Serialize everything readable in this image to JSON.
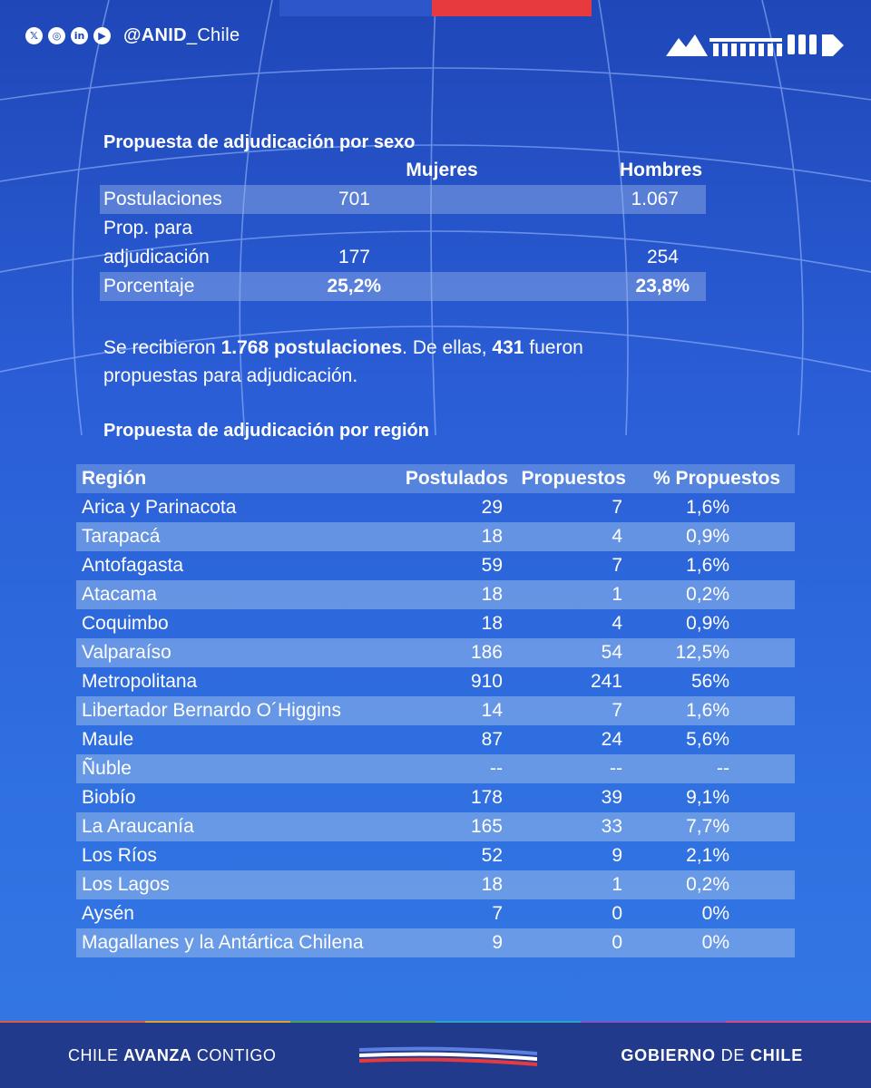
{
  "header": {
    "social_icons": [
      "x-icon",
      "instagram-icon",
      "linkedin-icon",
      "youtube-icon"
    ],
    "handle_bold": "@ANID",
    "handle_rest": "_Chile"
  },
  "sex_section": {
    "title": "Propuesta de adjudicación por sexo",
    "col_women": "Mujeres",
    "col_men": "Hombres",
    "rows": [
      {
        "label": "Postulaciones",
        "women": "701",
        "men": "1.067"
      },
      {
        "label_line1": "Prop. para",
        "label_line2": "adjudicación",
        "women": "177",
        "men": "254"
      },
      {
        "label": "Porcentaje",
        "women": "25,2%",
        "men": "23,8%"
      }
    ]
  },
  "summary": {
    "p1": "Se recibieron ",
    "b1": "1.768 postulaciones",
    "p2": ". De ellas, ",
    "b2": "431",
    "p3": " fueron",
    "line2": "propuestas para adjudicación."
  },
  "region_section": {
    "title": "Propuesta de adjudicación por región",
    "headers": [
      "Región",
      "Postulados",
      "Propuestos",
      "% Propuestos"
    ],
    "rows": [
      [
        "Arica y Parinacota",
        "29",
        "7",
        "1,6%"
      ],
      [
        "Tarapacá",
        "18",
        "4",
        "0,9%"
      ],
      [
        "Antofagasta",
        "59",
        "7",
        "1,6%"
      ],
      [
        "Atacama",
        "18",
        "1",
        "0,2%"
      ],
      [
        "Coquimbo",
        "18",
        "4",
        "0,9%"
      ],
      [
        "Valparaíso",
        "186",
        "54",
        "12,5%"
      ],
      [
        "Metropolitana",
        "910",
        "241",
        "56%"
      ],
      [
        "Libertador Bernardo O´Higgins",
        "14",
        "7",
        "1,6%"
      ],
      [
        "Maule",
        "87",
        "24",
        "5,6%"
      ],
      [
        "Ñuble",
        "--",
        "--",
        "--"
      ],
      [
        "Biobío",
        "178",
        "39",
        "9,1%"
      ],
      [
        "La Araucanía",
        "165",
        "33",
        "7,7%"
      ],
      [
        "Los Ríos",
        "52",
        "9",
        "2,1%"
      ],
      [
        "Los Lagos",
        "18",
        "1",
        "0,2%"
      ],
      [
        "Aysén",
        "7",
        "0",
        "0%"
      ],
      [
        "Magallanes y la Antártica Chilena",
        "9",
        "0",
        "0%"
      ]
    ]
  },
  "footer": {
    "left_normal": "CHILE ",
    "left_bold": "AVANZA",
    "left_rest": " CONTIGO",
    "right_bold1": "GOBIERNO",
    "right_normal": " DE ",
    "right_bold2": "CHILE"
  },
  "colors": {
    "flag_blue": "#2c56c9",
    "flag_red": "#e63a3f",
    "footer_bg": "#213a8c"
  }
}
